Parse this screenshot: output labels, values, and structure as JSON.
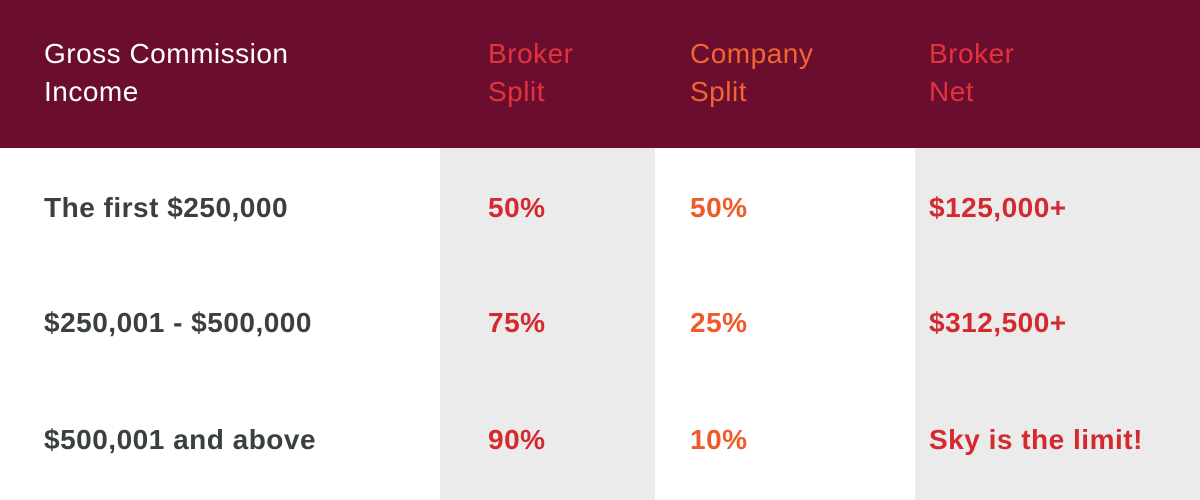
{
  "table": {
    "header": [
      "Gross Commission Income",
      "Broker Split",
      "Company Split",
      "Broker Net"
    ],
    "rows": [
      [
        "The first $250,000",
        "50%",
        "50%",
        "$125,000+"
      ],
      [
        "$250,001 - $500,000",
        "75%",
        "25%",
        "$312,500+"
      ],
      [
        "$500,001 and above",
        "90%",
        "10%",
        "Sky is the limit!"
      ]
    ]
  }
}
